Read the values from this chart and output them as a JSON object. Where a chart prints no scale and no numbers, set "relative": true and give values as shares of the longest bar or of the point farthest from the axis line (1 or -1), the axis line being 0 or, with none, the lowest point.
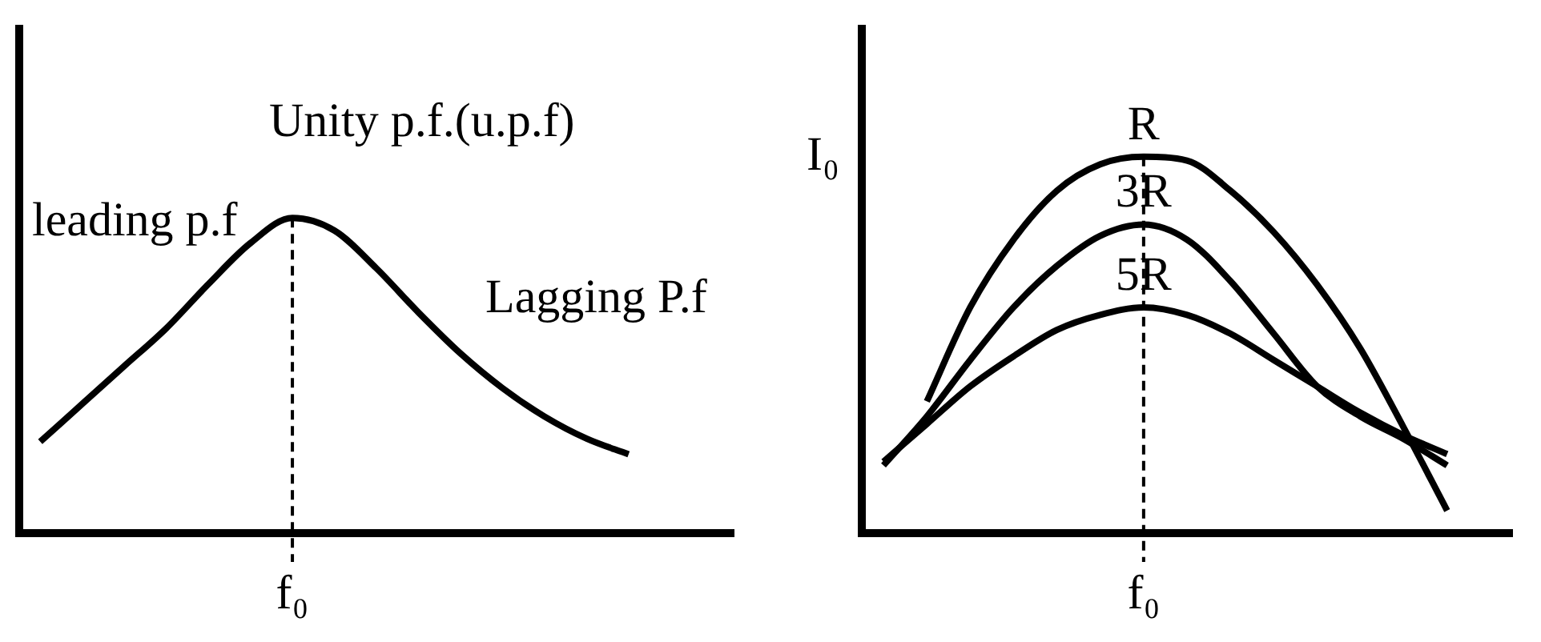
{
  "chart_data": [
    {
      "type": "line",
      "relative": true,
      "categories": [
        null,
        null,
        null,
        null,
        null,
        null,
        null,
        null,
        null,
        null,
        null,
        null,
        null,
        null,
        null,
        null,
        null
      ],
      "series": [
        {
          "color": "#000000",
          "values": [
            0.29,
            0.41,
            0.53,
            0.65,
            0.79,
            0.92,
            1,
            0.96,
            0.84,
            0.7,
            0.57,
            0.46,
            0.37,
            0.3,
            0.25,
            null,
            null
          ]
        }
      ],
      "xlabel": "f₀",
      "annotations": [
        "Unity p.f.(u.p.f)",
        "leading p.f",
        "Lagging P.f"
      ]
    },
    {
      "type": "line",
      "relative": true,
      "ylabel": "I₀",
      "categories": [
        null,
        null,
        null,
        null,
        null,
        null,
        null,
        null,
        null,
        null,
        null,
        null,
        null,
        null,
        null
      ],
      "series": [
        {
          "name": "R",
          "color": "#000000",
          "values": [
            null,
            0.35,
            0.6,
            0.78,
            0.91,
            0.98,
            1,
            0.99,
            0.91,
            0.8,
            0.66,
            0.49,
            0.28,
            0.06,
            null
          ]
        },
        {
          "name": "3R",
          "color": "#000000",
          "values": [
            0.18,
            0.31,
            0.46,
            0.6,
            0.71,
            0.79,
            0.82,
            0.78,
            0.67,
            0.53,
            0.39,
            0.31,
            0.25,
            0.18,
            null
          ]
        },
        {
          "name": "5R",
          "color": "#000000",
          "values": [
            0.19,
            0.29,
            0.39,
            0.47,
            0.54,
            0.58,
            0.6,
            0.58,
            0.53,
            0.46,
            0.39,
            0.32,
            0.26,
            0.21,
            null
          ]
        }
      ],
      "xlabel": "f₀"
    }
  ]
}
